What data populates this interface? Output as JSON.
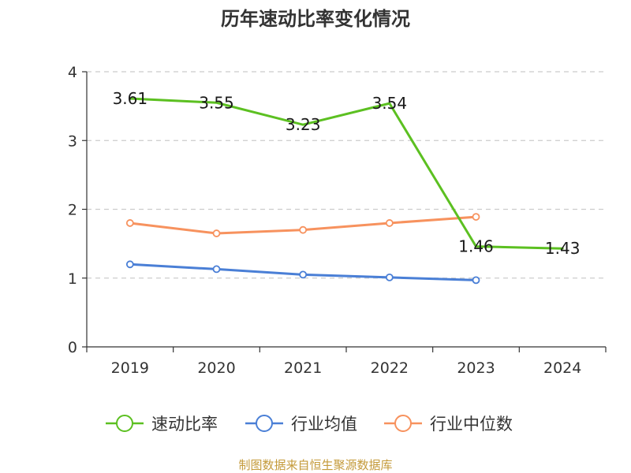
{
  "chart_data": {
    "type": "line",
    "title": "历年速动比率变化情况",
    "categories": [
      "2019",
      "2020",
      "2021",
      "2022",
      "2023",
      "2024"
    ],
    "ylim": [
      0,
      4
    ],
    "yticks": [
      "0",
      "1",
      "2",
      "3",
      "4"
    ],
    "grid": "horizontal-dashed",
    "legend_position": "bottom",
    "series": [
      {
        "name": "速动比率",
        "color": "#5cc021",
        "values": [
          3.61,
          3.55,
          3.23,
          3.54,
          1.46,
          1.43
        ],
        "labels": [
          "3.61",
          "3.55",
          "3.23",
          "3.54",
          "1.46",
          "1.43"
        ],
        "markers": false
      },
      {
        "name": "行业均值",
        "color": "#4a7fd6",
        "values": [
          1.2,
          1.13,
          1.05,
          1.01,
          0.97,
          null
        ],
        "markers": true
      },
      {
        "name": "行业中位数",
        "color": "#f7925e",
        "values": [
          1.8,
          1.65,
          1.7,
          1.8,
          1.89,
          null
        ],
        "markers": true
      }
    ]
  },
  "source_text": "制图数据来自恒生聚源数据库"
}
